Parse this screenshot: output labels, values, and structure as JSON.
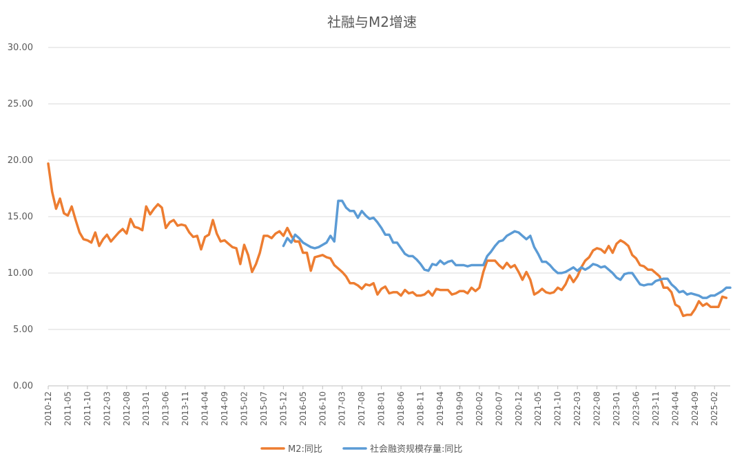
{
  "chart_data": {
    "type": "line",
    "title": "社融与M2增速",
    "xlabel": "",
    "ylabel": "",
    "ylim": [
      0,
      30
    ],
    "yticks": [
      "0.00",
      "5.00",
      "10.00",
      "15.00",
      "20.00",
      "25.00",
      "30.00"
    ],
    "y_tick_values": [
      0,
      5,
      10,
      15,
      20,
      25,
      30
    ],
    "x_start": "2010-12",
    "x_end": "2025-06",
    "xticks": [
      "2010-12",
      "2011-05",
      "2011-10",
      "2012-03",
      "2012-08",
      "2013-01",
      "2013-06",
      "2013-11",
      "2014-04",
      "2014-09",
      "2015-02",
      "2015-07",
      "2015-12",
      "2016-05",
      "2016-10",
      "2017-03",
      "2017-08",
      "2018-01",
      "2018-06",
      "2018-11",
      "2019-04",
      "2019-09",
      "2020-02",
      "2020-07",
      "2020-12",
      "2021-05",
      "2021-10",
      "2022-03",
      "2022-08",
      "2023-01",
      "2023-06",
      "2023-11",
      "2024-04",
      "2024-09",
      "2025-02"
    ],
    "grid": true,
    "legend_position": "bottom",
    "series": [
      {
        "name": "M2:同比",
        "color": "#ED7D31",
        "start": "2010-12",
        "values": [
          19.7,
          17.2,
          15.7,
          16.6,
          15.3,
          15.1,
          15.9,
          14.7,
          13.6,
          13.0,
          12.9,
          12.7,
          13.6,
          12.4,
          13.0,
          13.4,
          12.8,
          13.2,
          13.6,
          13.9,
          13.5,
          14.8,
          14.1,
          14.0,
          13.8,
          15.9,
          15.2,
          15.7,
          16.1,
          15.8,
          14.0,
          14.5,
          14.7,
          14.2,
          14.3,
          14.2,
          13.6,
          13.2,
          13.3,
          12.1,
          13.2,
          13.4,
          14.7,
          13.5,
          12.8,
          12.9,
          12.6,
          12.3,
          12.2,
          10.8,
          12.5,
          11.6,
          10.1,
          10.8,
          11.8,
          13.3,
          13.3,
          13.1,
          13.5,
          13.7,
          13.3,
          14.0,
          13.3,
          12.8,
          12.8,
          11.8,
          11.8,
          10.2,
          11.4,
          11.5,
          11.6,
          11.4,
          11.3,
          10.7,
          10.4,
          10.1,
          9.7,
          9.1,
          9.1,
          8.9,
          8.6,
          9.0,
          8.9,
          9.1,
          8.1,
          8.6,
          8.8,
          8.2,
          8.3,
          8.3,
          8.0,
          8.5,
          8.2,
          8.3,
          8.0,
          8.0,
          8.1,
          8.4,
          8.0,
          8.6,
          8.5,
          8.5,
          8.5,
          8.1,
          8.2,
          8.4,
          8.4,
          8.2,
          8.7,
          8.4,
          8.7,
          10.1,
          11.1,
          11.1,
          11.1,
          10.7,
          10.4,
          10.9,
          10.5,
          10.7,
          10.1,
          9.4,
          10.1,
          9.4,
          8.1,
          8.3,
          8.6,
          8.3,
          8.2,
          8.3,
          8.7,
          8.5,
          9.0,
          9.8,
          9.2,
          9.7,
          10.5,
          11.1,
          11.4,
          12.0,
          12.2,
          12.1,
          11.8,
          12.4,
          11.8,
          12.6,
          12.9,
          12.7,
          12.4,
          11.6,
          11.3,
          10.7,
          10.6,
          10.3,
          10.3,
          10.0,
          9.7,
          8.7,
          8.7,
          8.3,
          7.2,
          7.0,
          6.2,
          6.3,
          6.3,
          6.8,
          7.5,
          7.1,
          7.3,
          7.0,
          7.0,
          7.0,
          7.9,
          7.8
        ],
        "label_anchor": "m2"
      },
      {
        "name": "社会融资规模存量:同比",
        "color": "#5B9BD5",
        "start": "2015-12",
        "values": [
          12.4,
          13.1,
          12.7,
          13.4,
          13.1,
          12.7,
          12.5,
          12.3,
          12.2,
          12.3,
          12.5,
          12.7,
          13.3,
          12.8,
          16.4,
          16.4,
          15.8,
          15.5,
          15.5,
          14.9,
          15.5,
          15.1,
          14.8,
          14.9,
          14.5,
          14.0,
          13.4,
          13.4,
          12.7,
          12.7,
          12.2,
          11.7,
          11.5,
          11.5,
          11.2,
          10.8,
          10.3,
          10.2,
          10.8,
          10.7,
          11.1,
          10.8,
          11.0,
          11.1,
          10.7,
          10.7,
          10.7,
          10.6,
          10.7,
          10.7,
          10.7,
          10.7,
          11.5,
          11.9,
          12.4,
          12.8,
          12.9,
          13.3,
          13.5,
          13.7,
          13.6,
          13.3,
          13.0,
          13.3,
          12.3,
          11.7,
          11.0,
          11.0,
          10.7,
          10.3,
          10.0,
          10.0,
          10.1,
          10.3,
          10.5,
          10.2,
          10.5,
          10.3,
          10.5,
          10.8,
          10.7,
          10.5,
          10.6,
          10.3,
          10.0,
          9.6,
          9.4,
          9.9,
          10.0,
          10.0,
          9.5,
          9.0,
          8.9,
          9.0,
          9.0,
          9.3,
          9.4,
          9.5,
          9.5,
          9.0,
          8.7,
          8.3,
          8.4,
          8.1,
          8.2,
          8.1,
          8.0,
          7.8,
          7.8,
          8.0,
          8.0,
          8.2,
          8.4,
          8.7,
          8.7
        ]
      }
    ]
  }
}
